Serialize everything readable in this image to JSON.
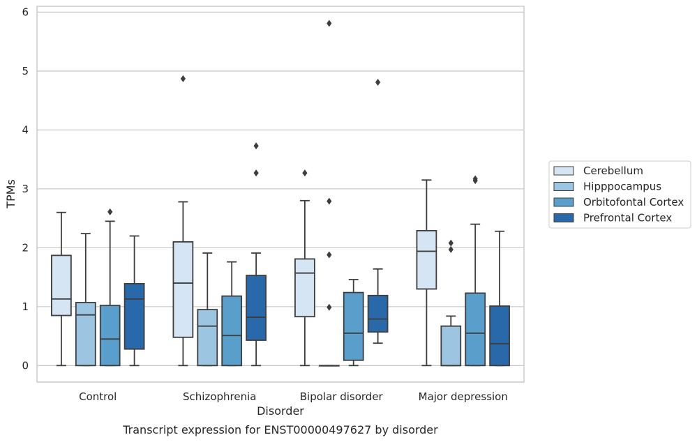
{
  "chart_data": {
    "type": "box",
    "title": "",
    "caption": "Transcript expression for ENST00000497627 by disorder",
    "xlabel": "Disorder",
    "ylabel": "TPMs",
    "ylim": [
      -0.28,
      6.1
    ],
    "yticks": [
      0,
      1,
      2,
      3,
      4,
      5,
      6
    ],
    "grid": "horizontal",
    "legend_position": "right",
    "categories": [
      "Control",
      "Schizophrenia",
      "Bipolar disorder",
      "Major depression"
    ],
    "series": [
      {
        "name": "Cerebellum",
        "color": "#d6e5f4",
        "boxes": [
          {
            "min": 0,
            "q1": 0.85,
            "median": 1.13,
            "q3": 1.87,
            "max": 2.6,
            "outliers": []
          },
          {
            "min": 0,
            "q1": 0.48,
            "median": 1.4,
            "q3": 2.1,
            "max": 2.78,
            "outliers": [
              4.87
            ]
          },
          {
            "min": 0,
            "q1": 0.83,
            "median": 1.57,
            "q3": 1.81,
            "max": 2.8,
            "outliers": [
              3.27
            ]
          },
          {
            "min": 0,
            "q1": 1.3,
            "median": 1.94,
            "q3": 2.29,
            "max": 3.15,
            "outliers": []
          }
        ]
      },
      {
        "name": "Hipppocampus",
        "color": "#9bc5e0",
        "boxes": [
          {
            "min": 0,
            "q1": 0,
            "median": 0.86,
            "q3": 1.07,
            "max": 2.24,
            "outliers": []
          },
          {
            "min": 0,
            "q1": 0,
            "median": 0.67,
            "q3": 0.95,
            "max": 1.91,
            "outliers": []
          },
          {
            "min": 0,
            "q1": 0,
            "median": 0,
            "q3": 0,
            "max": 0,
            "outliers": [
              0.99,
              1.88,
              2.79,
              5.81
            ]
          },
          {
            "min": 0,
            "q1": 0,
            "median": 0,
            "q3": 0.67,
            "max": 0.84,
            "outliers": [
              1.97,
              2.08
            ]
          }
        ]
      },
      {
        "name": "Orbitofontal Cortex",
        "color": "#5a9fcb",
        "boxes": [
          {
            "min": 0,
            "q1": 0,
            "median": 0.45,
            "q3": 1.02,
            "max": 2.45,
            "outliers": [
              2.61
            ]
          },
          {
            "min": 0,
            "q1": 0,
            "median": 0.51,
            "q3": 1.18,
            "max": 1.76,
            "outliers": []
          },
          {
            "min": 0,
            "q1": 0.09,
            "median": 0.55,
            "q3": 1.24,
            "max": 1.46,
            "outliers": []
          },
          {
            "min": 0,
            "q1": 0,
            "median": 0.55,
            "q3": 1.23,
            "max": 2.4,
            "outliers": [
              3.14,
              3.17
            ]
          }
        ]
      },
      {
        "name": "Prefrontal Cortex",
        "color": "#2a69a9",
        "boxes": [
          {
            "min": 0,
            "q1": 0.28,
            "median": 1.13,
            "q3": 1.39,
            "max": 2.2,
            "outliers": []
          },
          {
            "min": 0,
            "q1": 0.43,
            "median": 0.82,
            "q3": 1.53,
            "max": 1.91,
            "outliers": [
              3.27,
              3.73
            ]
          },
          {
            "min": 0.38,
            "q1": 0.57,
            "median": 0.79,
            "q3": 1.19,
            "max": 1.64,
            "outliers": [
              4.81
            ]
          },
          {
            "min": 0,
            "q1": 0,
            "median": 0.37,
            "q3": 1.01,
            "max": 2.28,
            "outliers": []
          }
        ]
      }
    ]
  }
}
